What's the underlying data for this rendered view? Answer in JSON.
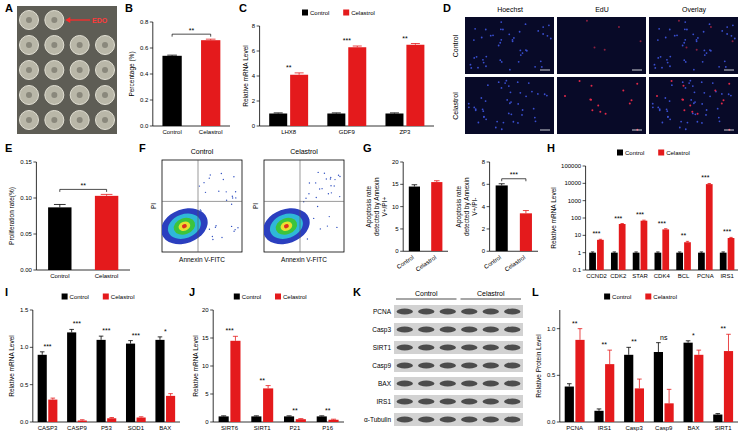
{
  "chart_data": [
    {
      "panel": "A",
      "type": "image",
      "annotations": [
        "EDO"
      ]
    },
    {
      "panel": "B",
      "type": "bar",
      "y_label": "Percentage (%)",
      "categories": [
        "Control",
        "Celastrol"
      ],
      "values": [
        0.54,
        0.66
      ],
      "errors": [
        0.005,
        0.008
      ],
      "colors": [
        "#000000",
        "#e41a1c"
      ],
      "ylim": [
        0,
        0.8
      ],
      "yticks": [
        {
          "value": 0,
          "label": "0.0"
        },
        0.2,
        0.4,
        0.6,
        0.8
      ],
      "significance": "**",
      "grid": false
    },
    {
      "panel": "C",
      "type": "bar",
      "y_label": "Relative mRNA Level",
      "categories": [
        "LHX8",
        "GDF9",
        "ZP3"
      ],
      "series": [
        {
          "name": "Control",
          "color": "#000000",
          "values": [
            1,
            1,
            1
          ],
          "errors": [
            0.05,
            0.05,
            0.05
          ]
        },
        {
          "name": "Celastrol",
          "color": "#e41a1c",
          "values": [
            4.1,
            6.3,
            6.5
          ],
          "errors": [
            0.15,
            0.1,
            0.1
          ]
        }
      ],
      "ylim": [
        0,
        8
      ],
      "yticks": [
        0,
        2,
        4,
        6,
        8
      ],
      "significance": [
        "**",
        "***",
        "**"
      ],
      "legend": "top",
      "grid": false
    },
    {
      "panel": "D",
      "type": "image_grid",
      "columns": [
        "Hoechst",
        "EdU",
        "Overlay"
      ],
      "rows": [
        "Control",
        "Celastrol"
      ]
    },
    {
      "panel": "E",
      "type": "bar",
      "y_label": "Proliferation rate(%)",
      "categories": [
        "Control",
        "Celastrol"
      ],
      "values": [
        0.087,
        0.103
      ],
      "errors": [
        0.004,
        0.002
      ],
      "colors": [
        "#000000",
        "#e41a1c"
      ],
      "ylim": [
        0,
        0.15
      ],
      "yticks": [
        {
          "value": 0,
          "label": "0.00"
        },
        0.05,
        {
          "value": 0.1,
          "label": "0.10"
        },
        0.15
      ],
      "significance": "**",
      "grid": false
    },
    {
      "panel": "F",
      "type": "flow_cytometry",
      "titles": [
        "Control",
        "Celastrol"
      ],
      "x_label": "Annexin V-FITC",
      "y_label": "PI"
    },
    {
      "panel": "G",
      "type": "bar",
      "subplots": [
        {
          "type": "bar",
          "y_label": "Apoptosis rate detected by Annexin V+/PI+",
          "categories": [
            "Control",
            "Celastrol"
          ],
          "values": [
            14.5,
            15.5
          ],
          "errors": [
            0.4,
            0.3
          ],
          "colors": [
            "#000000",
            "#e41a1c"
          ],
          "ylim": [
            0,
            20
          ],
          "yticks": [
            0,
            5,
            10,
            15,
            20
          ],
          "grid": false
        },
        {
          "type": "bar",
          "y_label": "Apoptosis rate detected by Annexin V+/PI-",
          "categories": [
            "Control",
            "Celastrol"
          ],
          "values": [
            5.9,
            3.4
          ],
          "errors": [
            0.15,
            0.25
          ],
          "colors": [
            "#000000",
            "#e41a1c"
          ],
          "ylim": [
            0,
            8
          ],
          "yticks": [
            0,
            2,
            4,
            6,
            8
          ],
          "significance": "***",
          "grid": false
        }
      ]
    },
    {
      "panel": "H",
      "type": "bar",
      "y_label": "Relative mRNA Level",
      "log": "y",
      "categories": [
        "CCND2",
        "CDK2",
        "STAR",
        "CDK4",
        "BCL",
        "PCNA",
        "IRS1"
      ],
      "series": [
        {
          "name": "Control",
          "color": "#000000",
          "values": [
            1,
            1,
            1,
            1,
            1,
            1,
            1
          ],
          "errors": [
            0.1,
            0.1,
            0.1,
            0.1,
            0.1,
            0.1,
            0.1
          ]
        },
        {
          "name": "Celastrol",
          "color": "#e41a1c",
          "values": [
            5.5,
            45,
            70,
            22,
            4,
            9000,
            7
          ],
          "errors": [
            0.4,
            3,
            5,
            2,
            0.5,
            800,
            0.6
          ]
        }
      ],
      "ylim": [
        0.1,
        100000
      ],
      "yticks": [
        0.1,
        1,
        10,
        100,
        1000,
        10000,
        100000
      ],
      "significance": [
        "***",
        "***",
        "***",
        "***",
        "**",
        "***",
        "***"
      ],
      "legend": "top",
      "grid": false
    },
    {
      "panel": "I",
      "type": "bar",
      "y_label": "Relative mRNA Level",
      "categories": [
        "CASP3",
        "CASP9",
        "P53",
        "SOD1",
        "BAX"
      ],
      "series": [
        {
          "name": "Control",
          "color": "#000000",
          "values": [
            0.9,
            1.2,
            1.1,
            1.05,
            1.1
          ],
          "errors": [
            0.04,
            0.04,
            0.05,
            0.04,
            0.04
          ]
        },
        {
          "name": "Celastrol",
          "color": "#e41a1c",
          "values": [
            0.3,
            0.02,
            0.05,
            0.06,
            0.35
          ],
          "errors": [
            0.02,
            0.01,
            0.01,
            0.01,
            0.03
          ]
        }
      ],
      "ylim": [
        0,
        1.5
      ],
      "yticks": [
        {
          "value": 0,
          "label": "0.0"
        },
        0.5,
        {
          "value": 1,
          "label": "1.0"
        },
        1.5
      ],
      "significance": [
        "***",
        "***",
        "***",
        "***",
        "*"
      ],
      "legend": "top",
      "grid": false
    },
    {
      "panel": "J",
      "type": "bar",
      "y_label": "Relative mRNA Level",
      "categories": [
        "SIRT6",
        "SIRT1",
        "P21",
        "P16"
      ],
      "series": [
        {
          "name": "Control",
          "color": "#000000",
          "values": [
            1,
            1,
            1,
            1
          ],
          "errors": [
            0.1,
            0.1,
            0.1,
            0.1
          ]
        },
        {
          "name": "Celastrol",
          "color": "#e41a1c",
          "values": [
            14.5,
            6,
            0.5,
            0.4
          ],
          "errors": [
            0.8,
            0.5,
            0.1,
            0.1
          ]
        }
      ],
      "ylim": [
        0,
        20
      ],
      "yticks": [
        0,
        5,
        10,
        15,
        20
      ],
      "significance": [
        "***",
        "**",
        "**",
        "**"
      ],
      "legend": "top",
      "grid": false
    },
    {
      "panel": "K",
      "type": "western_blot",
      "groups": [
        "Control",
        "Celastrol"
      ],
      "rows": [
        "PCNA",
        "Casp3",
        "SIRT1",
        "Casp9",
        "BAX",
        "IRS1",
        "α-Tubulin"
      ]
    },
    {
      "panel": "L",
      "type": "bar",
      "y_label": "Relative Protein Level",
      "categories": [
        "PCNA",
        "IRS1",
        "Casp3",
        "Casp9",
        "BAX",
        "SIRT1"
      ],
      "series": [
        {
          "name": "Control",
          "color": "#000000",
          "values": [
            0.38,
            0.12,
            0.72,
            0.75,
            0.85,
            0.08
          ],
          "errors": [
            0.03,
            0.02,
            0.08,
            0.1,
            0.02,
            0.01
          ]
        },
        {
          "name": "Celastrol",
          "color": "#e41a1c",
          "values": [
            0.88,
            0.62,
            0.36,
            0.2,
            0.72,
            0.76
          ],
          "errors": [
            0.12,
            0.15,
            0.1,
            0.15,
            0.05,
            0.18
          ]
        }
      ],
      "ylim": [
        0,
        1.2
      ],
      "yticks": [
        {
          "value": 0,
          "label": "0.0"
        },
        0.5,
        {
          "value": 1,
          "label": "1.0"
        }
      ],
      "significance": [
        "**",
        "**",
        "**",
        "ns",
        "*",
        "**"
      ],
      "legend": "top",
      "grid": false
    }
  ]
}
